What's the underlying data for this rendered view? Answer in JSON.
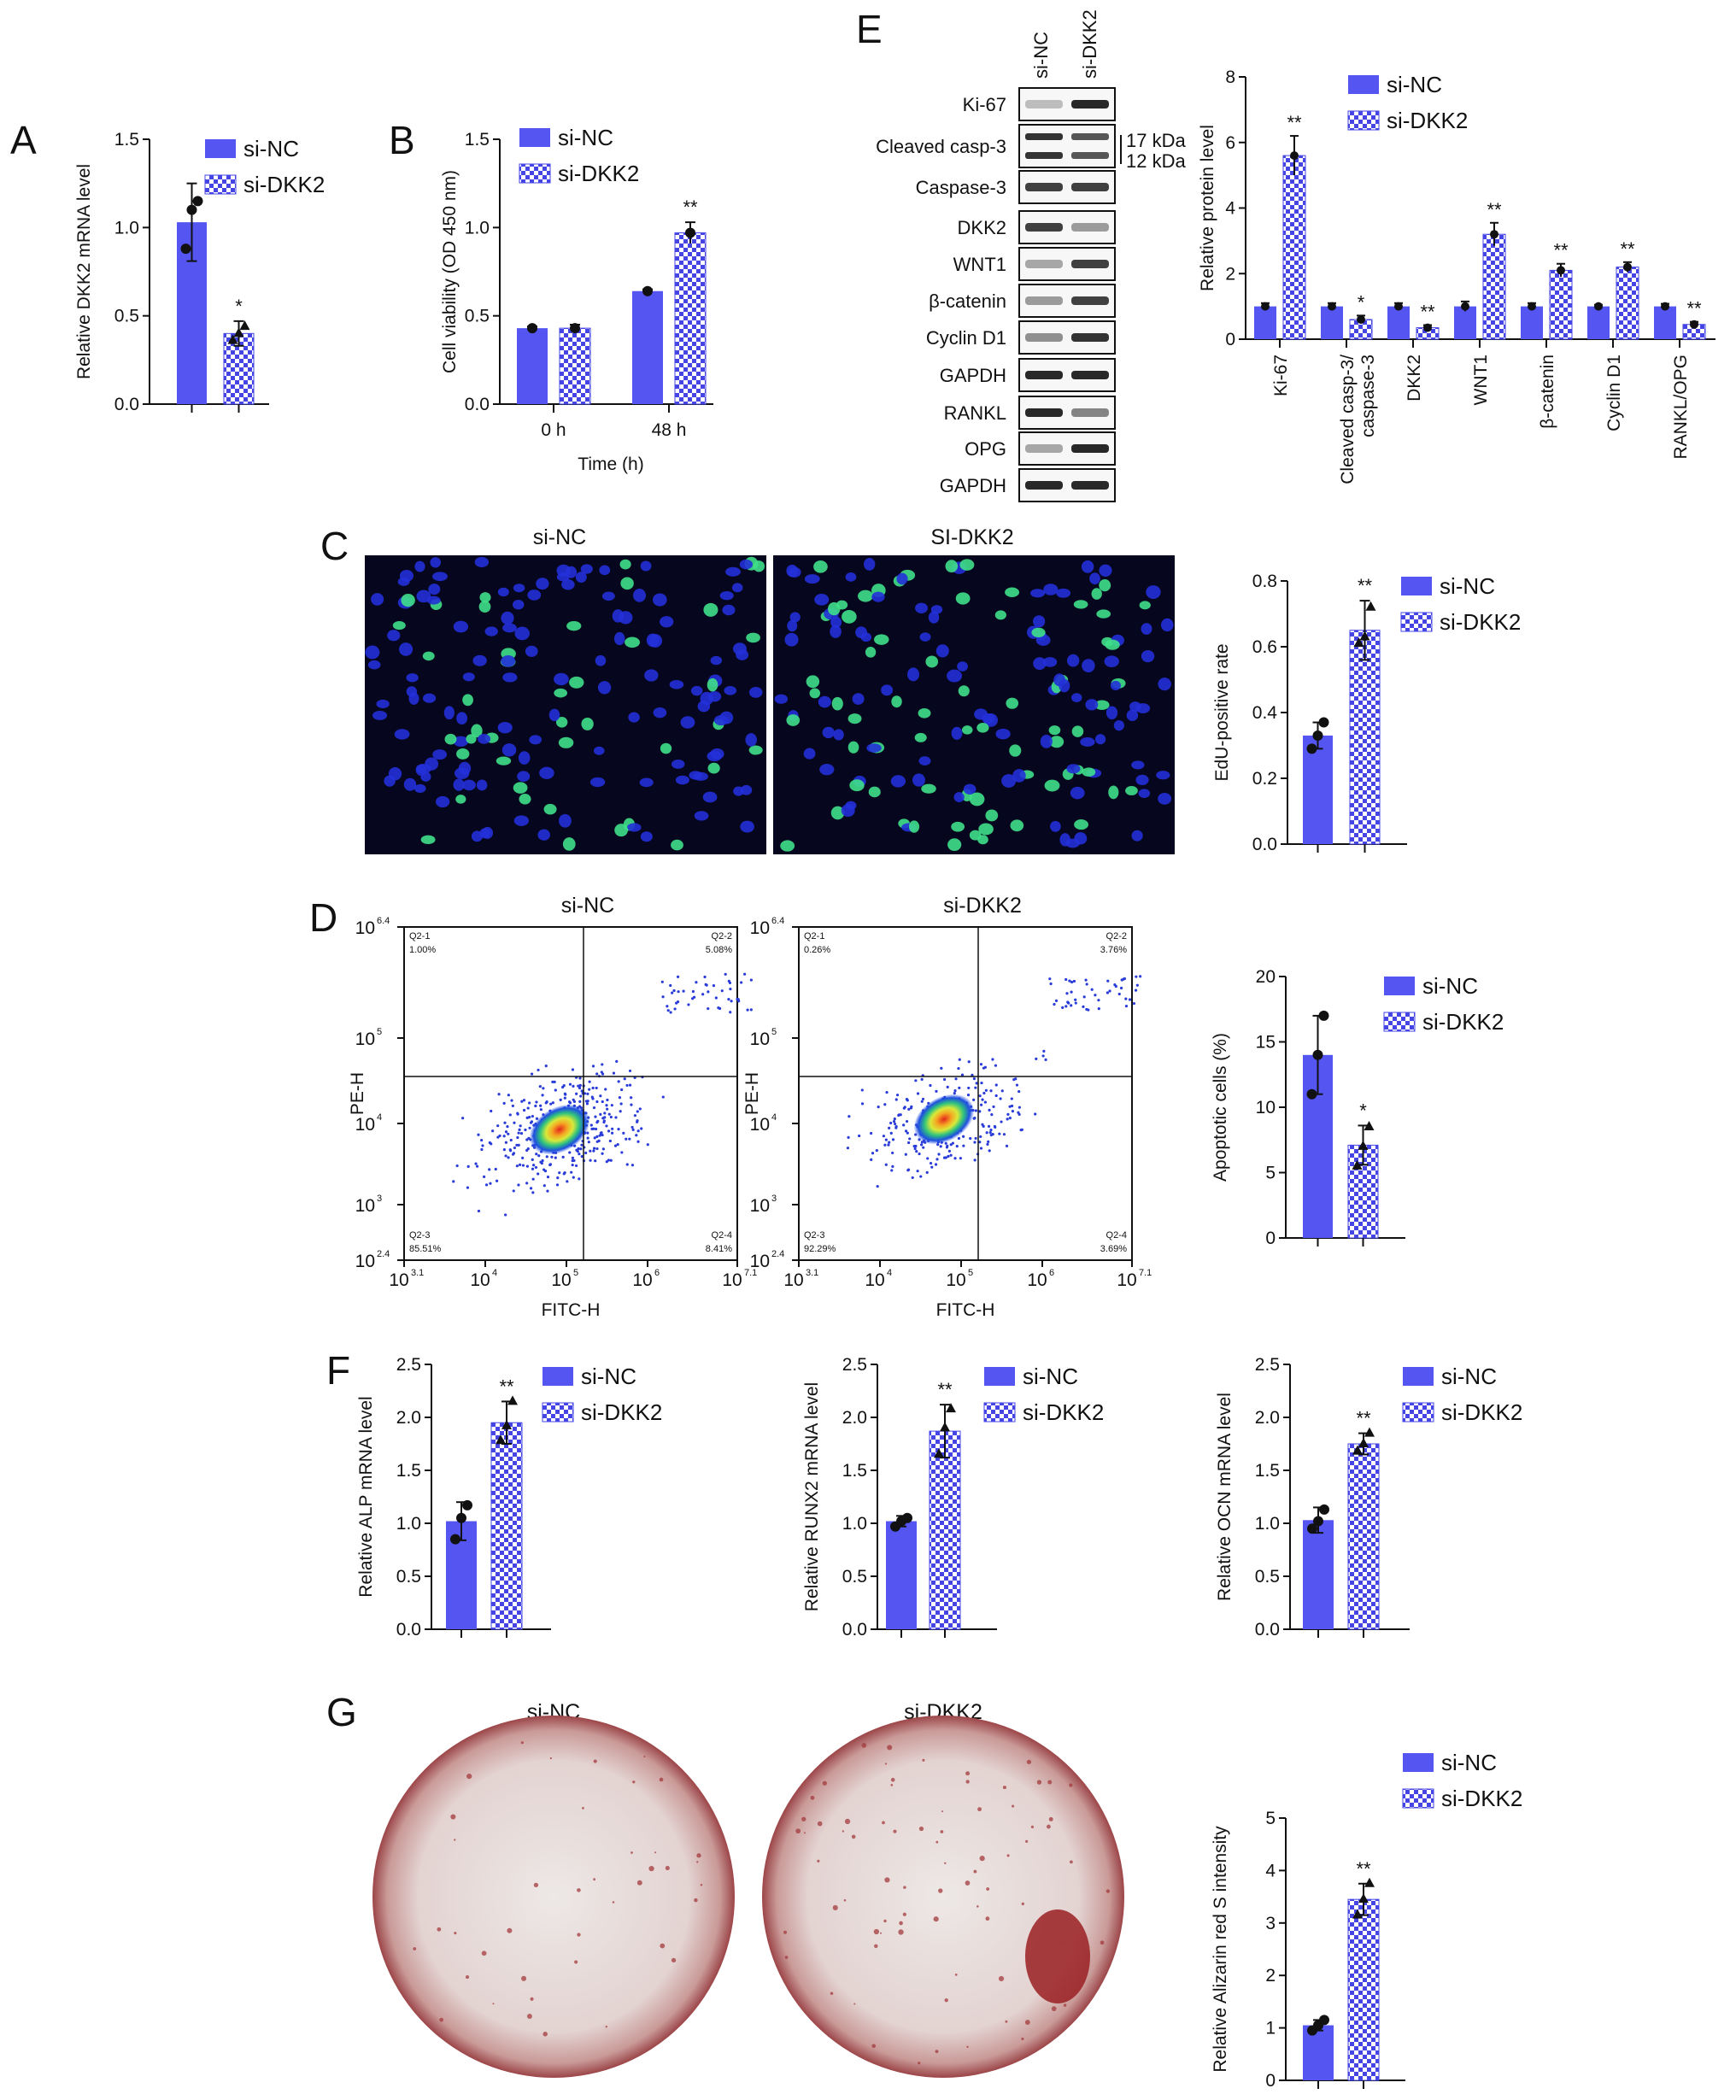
{
  "colors": {
    "si_nc": "#5555f2",
    "si_dkk2": "#4545e6",
    "axis": "#111111"
  },
  "panel_letters": [
    "A",
    "B",
    "C",
    "D",
    "E",
    "F",
    "G"
  ],
  "legend": {
    "nc": "si-NC",
    "dkk2": "si-DKK2"
  },
  "panel_e": {
    "lane_labels": [
      "si-NC",
      "si-DKK2"
    ],
    "rows": [
      "Ki-67",
      "Cleaved casp-3",
      "Caspase-3",
      "DKK2",
      "WNT1",
      "β-catenin",
      "Cyclin D1",
      "GAPDH",
      "RANKL",
      "OPG",
      "GAPDH"
    ],
    "kda": [
      "17 kDa",
      "12 kDa"
    ]
  },
  "panel_c": {
    "images": [
      "si-NC",
      "SI-DKK2"
    ]
  },
  "panel_d": {
    "titles": [
      "si-NC",
      "si-DKK2"
    ],
    "xlabel": "FITC-H",
    "ylabel": "PE-H",
    "x_ticks": [
      "10",
      "10",
      "10",
      "10",
      "10"
    ],
    "x_exp": [
      "3.1",
      "4",
      "5",
      "6",
      "7.1"
    ],
    "y_ticks": [
      "10",
      "10",
      "10",
      "10",
      "10"
    ],
    "y_exp": [
      "2.4",
      "3",
      "4",
      "5",
      "6.4"
    ],
    "quadrants_nc": [
      [
        "Q2-1",
        "1.00%"
      ],
      [
        "Q2-2",
        "5.08%"
      ],
      [
        "Q2-3",
        "85.51%"
      ],
      [
        "Q2-4",
        "8.41%"
      ]
    ],
    "quadrants_dkk2": [
      [
        "Q2-1",
        "0.26%"
      ],
      [
        "Q2-2",
        "3.76%"
      ],
      [
        "Q2-3",
        "92.29%"
      ],
      [
        "Q2-4",
        "3.69%"
      ]
    ]
  },
  "panel_g": {
    "titles": [
      "si-NC",
      "si-DKK2"
    ]
  },
  "chart_data": [
    {
      "panel": "A",
      "type": "bar",
      "categories": [
        "si-NC",
        "si-DKK2"
      ],
      "values": [
        1.03,
        0.4
      ],
      "errors": [
        0.22,
        0.07
      ],
      "points": [
        [
          0.88,
          1.1,
          1.15
        ],
        [
          0.36,
          0.4,
          0.44
        ]
      ],
      "ylabel": "Relative DKK2 mRNA level",
      "ylim": [
        0,
        1.5
      ],
      "yticks": [
        "0.0",
        "0.5",
        "1.0",
        "1.5"
      ],
      "significance": [
        "",
        "*"
      ]
    },
    {
      "panel": "B",
      "type": "bar",
      "categories": [
        "0 h",
        "48 h"
      ],
      "series": [
        {
          "name": "si-NC",
          "values": [
            0.43,
            0.64
          ],
          "errors": [
            0.01,
            0.01
          ]
        },
        {
          "name": "si-DKK2",
          "values": [
            0.43,
            0.97
          ],
          "errors": [
            0.02,
            0.06
          ]
        }
      ],
      "xlabel": "Time (h)",
      "ylabel": "Cell viability (OD 450 nm)",
      "ylim": [
        0,
        1.5
      ],
      "yticks": [
        "0.0",
        "0.5",
        "1.0",
        "1.5"
      ],
      "significance": [
        "",
        "**"
      ]
    },
    {
      "panel": "E",
      "type": "bar",
      "categories": [
        "Ki-67",
        "Cleaved casp-3/\ncaspase-3",
        "DKK2",
        "WNT1",
        "β-catenin",
        "Cyclin D1",
        "RANKL/OPG"
      ],
      "series": [
        {
          "name": "si-NC",
          "values": [
            1.0,
            1.0,
            1.0,
            1.0,
            1.0,
            1.0,
            1.0
          ],
          "errors": [
            0.1,
            0.1,
            0.1,
            0.15,
            0.1,
            0.05,
            0.08
          ]
        },
        {
          "name": "si-DKK2",
          "values": [
            5.6,
            0.6,
            0.35,
            3.2,
            2.1,
            2.2,
            0.45
          ],
          "errors": [
            0.6,
            0.12,
            0.08,
            0.35,
            0.2,
            0.15,
            0.08
          ]
        }
      ],
      "ylabel": "Relative protein level",
      "ylim": [
        0,
        8
      ],
      "yticks": [
        "0",
        "2",
        "4",
        "6",
        "8"
      ],
      "significance": [
        "**",
        "*",
        "**",
        "**",
        "**",
        "**",
        "**"
      ]
    },
    {
      "panel": "C",
      "type": "bar",
      "categories": [
        "si-NC",
        "si-DKK2"
      ],
      "values": [
        0.33,
        0.65
      ],
      "errors": [
        0.04,
        0.09
      ],
      "points": [
        [
          0.29,
          0.33,
          0.37
        ],
        [
          0.61,
          0.63,
          0.72
        ]
      ],
      "ylabel": "EdU-positive rate",
      "ylim": [
        0,
        0.8
      ],
      "yticks": [
        "0.0",
        "0.2",
        "0.4",
        "0.6",
        "0.8"
      ],
      "significance": [
        "",
        "**"
      ]
    },
    {
      "panel": "D",
      "type": "bar",
      "categories": [
        "si-NC",
        "si-DKK2"
      ],
      "values": [
        14.0,
        7.1
      ],
      "errors": [
        3.0,
        1.5
      ],
      "points": [
        [
          11.0,
          14.0,
          17.0
        ],
        [
          5.5,
          7.0,
          8.5
        ]
      ],
      "ylabel": "Apoptotic cells (%)",
      "ylim": [
        0,
        20
      ],
      "yticks": [
        "0",
        "5",
        "10",
        "15",
        "20"
      ],
      "significance": [
        "",
        "*"
      ]
    },
    {
      "panel": "F1",
      "type": "bar",
      "categories": [
        "si-NC",
        "si-DKK2"
      ],
      "values": [
        1.02,
        1.95
      ],
      "errors": [
        0.18,
        0.2
      ],
      "points": [
        [
          0.85,
          1.05,
          1.17
        ],
        [
          1.78,
          1.92,
          2.15
        ]
      ],
      "ylabel": "Relative ALP mRNA level",
      "ylim": [
        0,
        2.5
      ],
      "yticks": [
        "0.0",
        "0.5",
        "1.0",
        "1.5",
        "2.0",
        "2.5"
      ],
      "significance": [
        "",
        "**"
      ]
    },
    {
      "panel": "F2",
      "type": "bar",
      "categories": [
        "si-NC",
        "si-DKK2"
      ],
      "values": [
        1.02,
        1.87
      ],
      "errors": [
        0.05,
        0.25
      ],
      "points": [
        [
          0.97,
          1.02,
          1.05
        ],
        [
          1.65,
          1.9,
          2.08
        ]
      ],
      "ylabel": "Relative RUNX2 mRNA level",
      "ylim": [
        0,
        2.5
      ],
      "yticks": [
        "0.0",
        "0.5",
        "1.0",
        "1.5",
        "2.0",
        "2.5"
      ],
      "significance": [
        "",
        "**"
      ]
    },
    {
      "panel": "F3",
      "type": "bar",
      "categories": [
        "si-NC",
        "si-DKK2"
      ],
      "values": [
        1.03,
        1.75
      ],
      "errors": [
        0.12,
        0.1
      ],
      "points": [
        [
          0.95,
          1.02,
          1.13
        ],
        [
          1.68,
          1.75,
          1.85
        ]
      ],
      "ylabel": "Relative OCN mRNA level",
      "ylim": [
        0,
        2.5
      ],
      "yticks": [
        "0.0",
        "0.5",
        "1.0",
        "1.5",
        "2.0",
        "2.5"
      ],
      "significance": [
        "",
        "**"
      ]
    },
    {
      "panel": "G",
      "type": "bar",
      "categories": [
        "si-NC",
        "si-DKK2"
      ],
      "values": [
        1.05,
        3.45
      ],
      "errors": [
        0.1,
        0.3
      ],
      "points": [
        [
          0.95,
          1.05,
          1.15
        ],
        [
          3.15,
          3.45,
          3.75
        ]
      ],
      "ylabel": "Relative Alizarin red S intensity",
      "ylim": [
        0,
        5
      ],
      "yticks": [
        "0",
        "1",
        "2",
        "3",
        "4",
        "5"
      ],
      "significance": [
        "",
        "**"
      ]
    }
  ]
}
